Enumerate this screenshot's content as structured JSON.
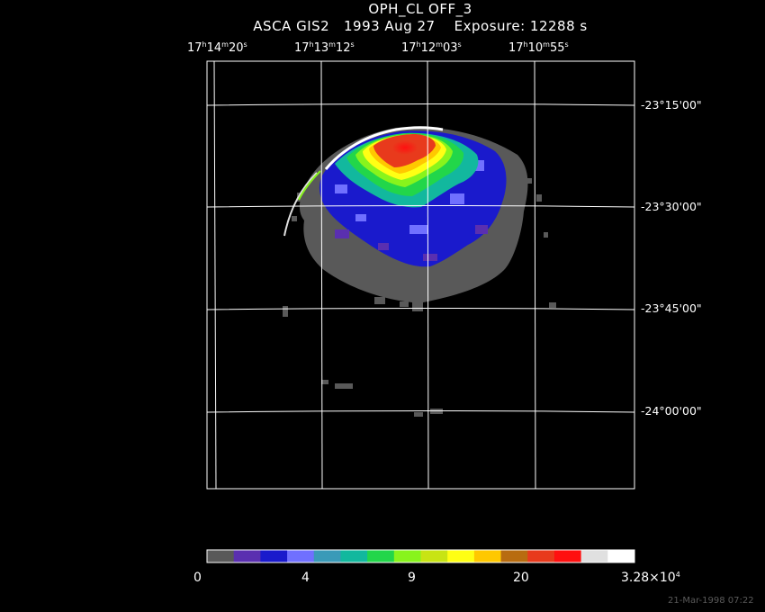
{
  "title": {
    "line1": "OPH_CL OFF_3",
    "line2": "ASCA GIS2   1993 Aug 27    Exposure: 12288 s"
  },
  "ra_ticks": [
    {
      "h": "17",
      "m": "14",
      "s": "20"
    },
    {
      "h": "17",
      "m": "13",
      "s": "12"
    },
    {
      "h": "17",
      "m": "12",
      "s": "03"
    },
    {
      "h": "17",
      "m": "10",
      "s": "55"
    }
  ],
  "ra_units": {
    "h": "h",
    "m": "m",
    "s": "s"
  },
  "dec_ticks": [
    "-23°15'00\"",
    "-23°30'00\"",
    "-23°45'00\"",
    "-24°00'00\""
  ],
  "colorbar": {
    "colors": [
      "#595959",
      "#5a2fb0",
      "#1a1acc",
      "#7070ff",
      "#3a9ab8",
      "#12b89e",
      "#22d64a",
      "#88f41c",
      "#c8e414",
      "#ffff14",
      "#ffc800",
      "#b86c10",
      "#e83a1c",
      "#ff1010",
      "#e0e0e0",
      "#ffffff"
    ],
    "labels": [
      "0",
      "4",
      "9",
      "20",
      "3.28×10"
    ],
    "last_label_exponent": "4"
  },
  "timestamp": "21-Mar-1998 07:22",
  "image_colors": {
    "background": "#000000",
    "grid": "#ffffff",
    "frame": "#ffffff"
  }
}
